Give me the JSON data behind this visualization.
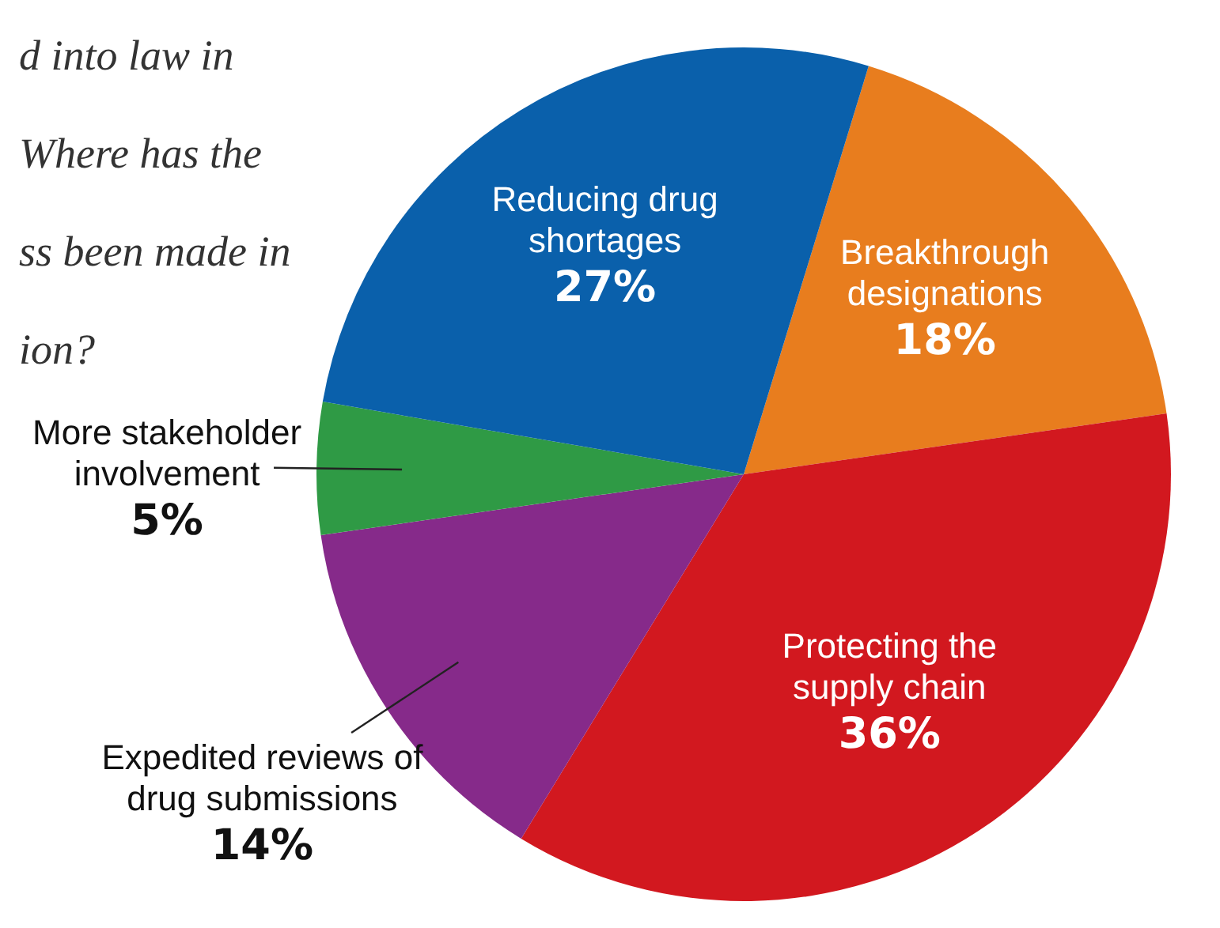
{
  "chart_data": {
    "type": "pie",
    "title": "d into law in\nWhere has the\nss been made in\nion?",
    "categories": [
      "Breakthrough designations",
      "Protecting the supply chain",
      "Expedited reviews of drug submissions",
      "More stakeholder involvement",
      "Reducing drug shortages"
    ],
    "values": [
      18,
      36,
      14,
      5,
      27
    ],
    "value_labels": [
      "18%",
      "36%",
      "14%",
      "5%",
      "27%"
    ],
    "colors": [
      "#e87d1e",
      "#d2181f",
      "#862a8a",
      "#2f9a45",
      "#0a60ab"
    ],
    "legend": false
  }
}
